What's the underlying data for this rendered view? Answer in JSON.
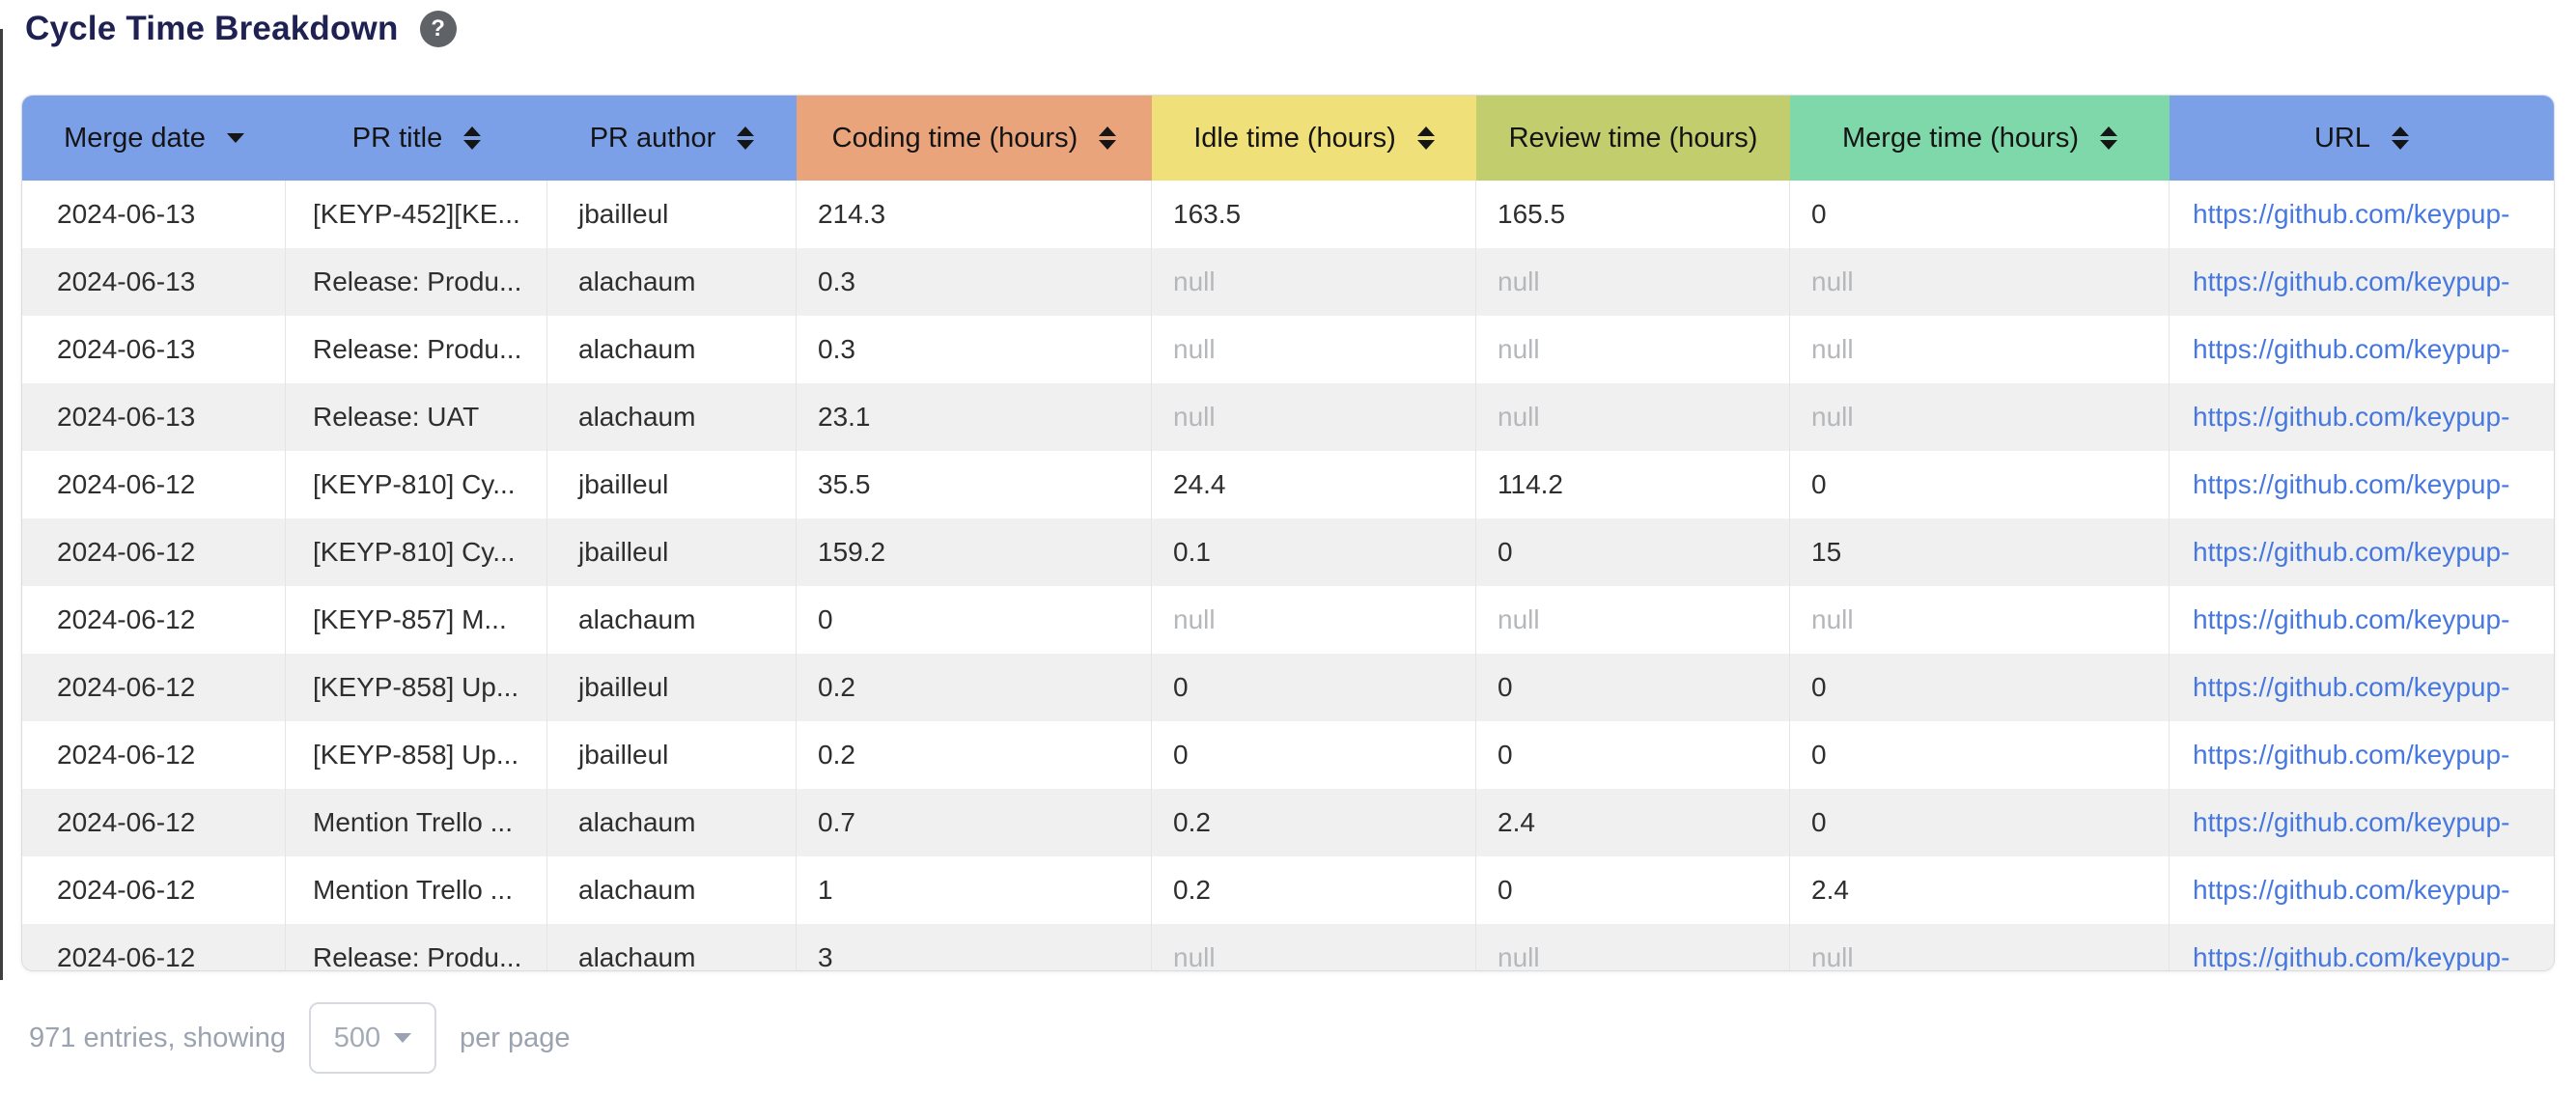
{
  "page": {
    "title": "Cycle Time Breakdown",
    "help_icon": "?"
  },
  "colors": {
    "header_blue": "#7ba0e8",
    "coding_orange": "#e9a47c",
    "idle_yellow": "#f0e07a",
    "review_olive": "#c2ce6e",
    "merge_green": "#7ed8a9",
    "link_blue": "#4678e0",
    "title_navy": "#1f2152",
    "alt_row_gray": "#f0f0f1",
    "null_text_gray": "#b5b7ba"
  },
  "table": {
    "columns": [
      {
        "key": "merge_date",
        "label": "Merge date",
        "bg": "#7ba0e8",
        "sort": "desc"
      },
      {
        "key": "pr_title",
        "label": "PR title",
        "bg": "#7ba0e8",
        "sort": "both"
      },
      {
        "key": "pr_author",
        "label": "PR author",
        "bg": "#7ba0e8",
        "sort": "both"
      },
      {
        "key": "coding_time",
        "label": "Coding time (hours)",
        "bg": "#e9a47c",
        "sort": "both"
      },
      {
        "key": "idle_time",
        "label": "Idle time (hours)",
        "bg": "#f0e07a",
        "sort": "both"
      },
      {
        "key": "review_time",
        "label": "Review time (hours)",
        "bg": "#c2ce6e",
        "sort": "none"
      },
      {
        "key": "merge_time",
        "label": "Merge time (hours)",
        "bg": "#7ed8a9",
        "sort": "both"
      },
      {
        "key": "url",
        "label": "URL",
        "bg": "#7ba0e8",
        "sort": "both"
      }
    ],
    "rows": [
      [
        "2024-06-13",
        "[KEYP-452][KE...",
        "jbailleul",
        "214.3",
        "163.5",
        "165.5",
        "0",
        "https://github.com/keypup-"
      ],
      [
        "2024-06-13",
        "Release: Produ...",
        "alachaum",
        "0.3",
        "null",
        "null",
        "null",
        "https://github.com/keypup-"
      ],
      [
        "2024-06-13",
        "Release: Produ...",
        "alachaum",
        "0.3",
        "null",
        "null",
        "null",
        "https://github.com/keypup-"
      ],
      [
        "2024-06-13",
        "Release: UAT",
        "alachaum",
        "23.1",
        "null",
        "null",
        "null",
        "https://github.com/keypup-"
      ],
      [
        "2024-06-12",
        "[KEYP-810] Cy...",
        "jbailleul",
        "35.5",
        "24.4",
        "114.2",
        "0",
        "https://github.com/keypup-"
      ],
      [
        "2024-06-12",
        "[KEYP-810] Cy...",
        "jbailleul",
        "159.2",
        "0.1",
        "0",
        "15",
        "https://github.com/keypup-"
      ],
      [
        "2024-06-12",
        "[KEYP-857] M...",
        "alachaum",
        "0",
        "null",
        "null",
        "null",
        "https://github.com/keypup-"
      ],
      [
        "2024-06-12",
        "[KEYP-858] Up...",
        "jbailleul",
        "0.2",
        "0",
        "0",
        "0",
        "https://github.com/keypup-"
      ],
      [
        "2024-06-12",
        "[KEYP-858] Up...",
        "jbailleul",
        "0.2",
        "0",
        "0",
        "0",
        "https://github.com/keypup-"
      ],
      [
        "2024-06-12",
        "Mention Trello ...",
        "alachaum",
        "0.7",
        "0.2",
        "2.4",
        "0",
        "https://github.com/keypup-"
      ],
      [
        "2024-06-12",
        "Mention Trello ...",
        "alachaum",
        "1",
        "0.2",
        "0",
        "2.4",
        "https://github.com/keypup-"
      ],
      [
        "2024-06-12",
        "Release: Produ...",
        "alachaum",
        "3",
        "null",
        "null",
        "null",
        "https://github.com/keypup-"
      ]
    ]
  },
  "footer": {
    "entries_text": "971 entries, showing",
    "page_size": "500",
    "per_page_text": "per page"
  }
}
